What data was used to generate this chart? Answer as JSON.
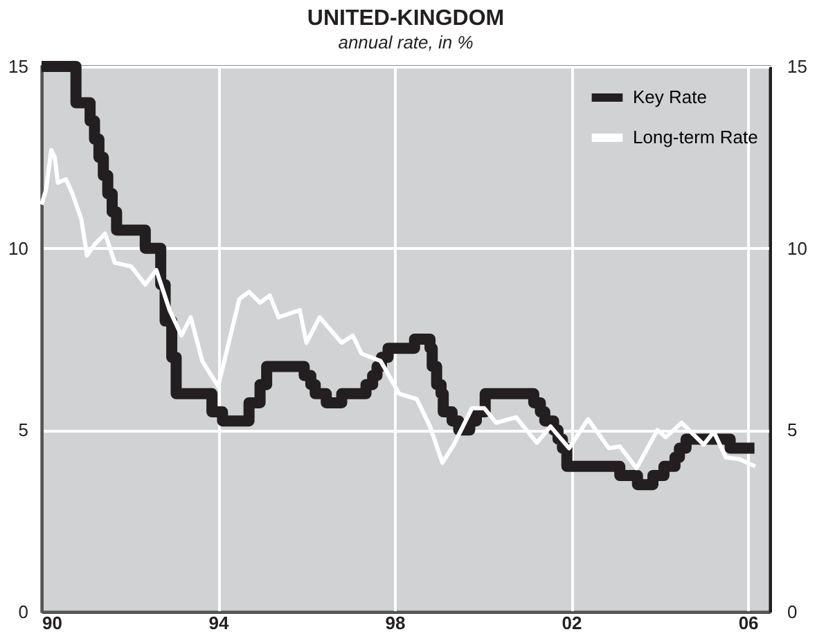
{
  "chart_data": {
    "type": "line",
    "title": "UNITED-KINGDOM",
    "subtitle": "annual rate, in %",
    "xlim": [
      1990,
      2006.5
    ],
    "xticks": [
      {
        "value": 1990,
        "label": "90"
      },
      {
        "value": 1994,
        "label": "94"
      },
      {
        "value": 1998,
        "label": "98"
      },
      {
        "value": 2002,
        "label": "02"
      },
      {
        "value": 2006,
        "label": "06"
      }
    ],
    "ylim": [
      0,
      15
    ],
    "yticks": [
      0,
      5,
      10,
      15
    ],
    "y2lim": [
      0,
      15
    ],
    "y2ticks": [
      0,
      5,
      10,
      15
    ],
    "grid": true,
    "legend": "top right",
    "series": [
      {
        "name": "Key Rate",
        "type": "step",
        "color": "#231f20",
        "x": [
          1990.0,
          1990.78,
          1991.1,
          1991.2,
          1991.3,
          1991.4,
          1991.5,
          1991.6,
          1991.7,
          1992.35,
          1992.7,
          1992.8,
          1992.95,
          1993.05,
          1993.86,
          1994.1,
          1994.7,
          1994.95,
          1995.1,
          1995.95,
          1996.1,
          1996.2,
          1996.45,
          1996.8,
          1997.35,
          1997.5,
          1997.6,
          1997.7,
          1997.85,
          1998.45,
          1998.8,
          1998.85,
          1998.95,
          1999.05,
          1999.1,
          1999.3,
          1999.45,
          1999.7,
          1999.85,
          2000.05,
          2001.15,
          2001.3,
          2001.4,
          2001.6,
          2001.7,
          2001.8,
          2001.9,
          2003.1,
          2003.5,
          2003.85,
          2004.1,
          2004.35,
          2004.45,
          2004.6,
          2005.6,
          2006.15
        ],
        "values": [
          15,
          14,
          13.5,
          13,
          12.5,
          12,
          11.5,
          11,
          10.5,
          10,
          9,
          8,
          7,
          6,
          5.5,
          5.25,
          5.75,
          6.25,
          6.75,
          6.5,
          6.25,
          6,
          5.75,
          6,
          6.25,
          6.5,
          6.75,
          7,
          7.25,
          7.5,
          7.25,
          6.75,
          6.25,
          6,
          5.5,
          5.25,
          5,
          5.25,
          5.5,
          6,
          5.75,
          5.5,
          5.25,
          5,
          4.75,
          4.5,
          4,
          3.75,
          3.5,
          3.75,
          4,
          4.25,
          4.5,
          4.75,
          4.5,
          4.5
        ]
      },
      {
        "name": "Long-term Rate",
        "type": "line",
        "color": "#ffffff",
        "x": [
          1990.0,
          1990.1,
          1990.22,
          1990.3,
          1990.37,
          1990.55,
          1990.7,
          1990.9,
          1991.03,
          1991.2,
          1991.44,
          1991.66,
          1992.03,
          1992.35,
          1992.6,
          1992.9,
          1993.17,
          1993.38,
          1993.64,
          1994.0,
          1994.48,
          1994.7,
          1994.95,
          1995.17,
          1995.37,
          1995.85,
          1996.0,
          1996.3,
          1996.8,
          1997.05,
          1997.25,
          1997.68,
          1998.1,
          1998.5,
          1998.8,
          1999.08,
          1999.34,
          1999.75,
          2000.03,
          2000.3,
          2000.75,
          2001.22,
          2001.53,
          2001.95,
          2002.38,
          2002.85,
          2003.1,
          2003.48,
          2003.95,
          2004.14,
          2004.5,
          2005.0,
          2005.23,
          2005.5,
          2005.8,
          2006.17
        ],
        "values": [
          11.2,
          11.6,
          12.7,
          12.5,
          11.8,
          11.9,
          11.5,
          10.8,
          9.8,
          10.1,
          10.4,
          9.6,
          9.5,
          9.0,
          9.4,
          8.3,
          7.6,
          8.1,
          6.9,
          6.2,
          8.6,
          8.8,
          8.5,
          8.7,
          8.1,
          8.3,
          7.4,
          8.1,
          7.4,
          7.6,
          7.1,
          6.9,
          6.0,
          5.85,
          5.1,
          4.1,
          4.6,
          5.6,
          5.6,
          5.2,
          5.35,
          4.65,
          5.1,
          4.5,
          5.3,
          4.5,
          4.55,
          3.95,
          5.0,
          4.8,
          5.2,
          4.6,
          4.95,
          4.25,
          4.2,
          4.0
        ]
      }
    ]
  }
}
